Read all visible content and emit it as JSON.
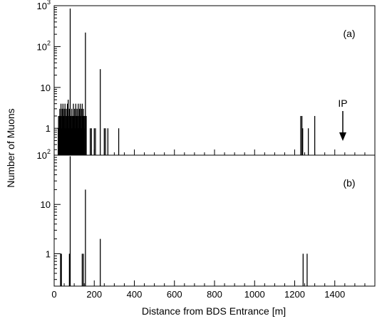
{
  "chart_data": {
    "type": "bar",
    "xlabel": "Distance from BDS Entrance [m]",
    "ylabel": "Number of Muons",
    "xlim": [
      0,
      1600
    ],
    "x_ticks": [
      {
        "v": 0,
        "label": "0"
      },
      {
        "v": 200,
        "label": "200"
      },
      {
        "v": 400,
        "label": "400"
      },
      {
        "v": 600,
        "label": "600"
      },
      {
        "v": 800,
        "label": "800"
      },
      {
        "v": 1000,
        "label": "1000"
      },
      {
        "v": 1200,
        "label": "1200"
      },
      {
        "v": 1400,
        "label": "1400"
      }
    ],
    "panels": [
      {
        "label": "(a)",
        "y_scale": "log",
        "ylim": [
          0.22,
          1000
        ],
        "y_ticks": [
          {
            "v": 1,
            "base": "1"
          },
          {
            "v": 10,
            "base": "10"
          },
          {
            "v": 100,
            "base": "10",
            "exp": "2"
          },
          {
            "v": 1000,
            "base": "10",
            "exp": "3"
          }
        ],
        "annotation": {
          "text": "IP",
          "x": 1440,
          "style": "down-arrow"
        },
        "bars": [
          [
            20,
            1
          ],
          [
            22,
            2
          ],
          [
            24,
            1
          ],
          [
            26,
            2
          ],
          [
            28,
            3
          ],
          [
            30,
            2
          ],
          [
            32,
            1
          ],
          [
            34,
            4
          ],
          [
            36,
            2
          ],
          [
            38,
            1
          ],
          [
            40,
            3
          ],
          [
            42,
            2
          ],
          [
            44,
            4
          ],
          [
            46,
            1
          ],
          [
            48,
            2
          ],
          [
            50,
            3
          ],
          [
            52,
            1
          ],
          [
            54,
            4
          ],
          [
            56,
            2
          ],
          [
            58,
            1
          ],
          [
            60,
            3
          ],
          [
            62,
            2
          ],
          [
            64,
            1
          ],
          [
            66,
            4
          ],
          [
            68,
            2
          ],
          [
            70,
            5
          ],
          [
            72,
            1
          ],
          [
            74,
            2
          ],
          [
            76,
            3
          ],
          [
            78,
            1
          ],
          [
            80,
            850
          ],
          [
            84,
            2
          ],
          [
            86,
            1
          ],
          [
            88,
            3
          ],
          [
            90,
            2
          ],
          [
            92,
            1
          ],
          [
            94,
            2
          ],
          [
            96,
            4
          ],
          [
            98,
            1
          ],
          [
            100,
            2
          ],
          [
            102,
            3
          ],
          [
            104,
            2
          ],
          [
            106,
            1
          ],
          [
            108,
            4
          ],
          [
            110,
            2
          ],
          [
            112,
            1
          ],
          [
            114,
            3
          ],
          [
            116,
            2
          ],
          [
            118,
            1
          ],
          [
            120,
            4
          ],
          [
            122,
            2
          ],
          [
            124,
            1
          ],
          [
            126,
            3
          ],
          [
            128,
            2
          ],
          [
            130,
            4
          ],
          [
            132,
            1
          ],
          [
            134,
            2
          ],
          [
            136,
            3
          ],
          [
            138,
            1
          ],
          [
            140,
            4
          ],
          [
            142,
            2
          ],
          [
            144,
            1
          ],
          [
            146,
            3
          ],
          [
            148,
            2
          ],
          [
            150,
            1
          ],
          [
            152,
            2
          ],
          [
            156,
            220
          ],
          [
            158,
            1
          ],
          [
            160,
            2
          ],
          [
            180,
            1
          ],
          [
            186,
            1
          ],
          [
            200,
            1
          ],
          [
            206,
            1
          ],
          [
            230,
            28
          ],
          [
            250,
            1
          ],
          [
            256,
            1
          ],
          [
            268,
            1
          ],
          [
            322,
            1
          ],
          [
            1230,
            2
          ],
          [
            1236,
            2
          ],
          [
            1240,
            1
          ],
          [
            1268,
            1
          ],
          [
            1300,
            2
          ]
        ]
      },
      {
        "label": "(b)",
        "y_scale": "log",
        "ylim": [
          0.22,
          100
        ],
        "y_ticks": [
          {
            "v": 1,
            "base": "1"
          },
          {
            "v": 10,
            "base": "10"
          },
          {
            "v": 100,
            "base": "10",
            "exp": "2"
          }
        ],
        "bars": [
          [
            32,
            1
          ],
          [
            36,
            1
          ],
          [
            76,
            1
          ],
          [
            80,
            95
          ],
          [
            140,
            1
          ],
          [
            146,
            1
          ],
          [
            156,
            20
          ],
          [
            230,
            2
          ],
          [
            1242,
            1
          ],
          [
            1262,
            1
          ]
        ]
      }
    ]
  }
}
